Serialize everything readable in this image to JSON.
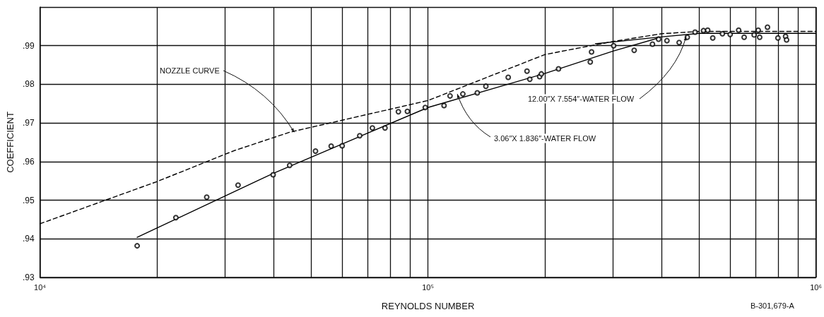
{
  "chart_data": {
    "type": "scatter",
    "xlabel": "REYNOLDS NUMBER",
    "ylabel": "COEFFICIENT",
    "log": "x",
    "grid": true,
    "xlim": [
      10000,
      1000000
    ],
    "xticks": [
      {
        "value": 10000,
        "label": "10⁴"
      },
      {
        "value": 20000,
        "label": null
      },
      {
        "value": 30000,
        "label": null
      },
      {
        "value": 40000,
        "label": null
      },
      {
        "value": 50000,
        "label": null
      },
      {
        "value": 60000,
        "label": null
      },
      {
        "value": 70000,
        "label": null
      },
      {
        "value": 80000,
        "label": null
      },
      {
        "value": 90000,
        "label": null
      },
      {
        "value": 100000,
        "label": "10⁵"
      },
      {
        "value": 200000,
        "label": null
      },
      {
        "value": 300000,
        "label": null
      },
      {
        "value": 400000,
        "label": null
      },
      {
        "value": 500000,
        "label": null
      },
      {
        "value": 600000,
        "label": null
      },
      {
        "value": 700000,
        "label": null
      },
      {
        "value": 800000,
        "label": null
      },
      {
        "value": 900000,
        "label": null
      },
      {
        "value": 1000000,
        "label": "10⁶"
      }
    ],
    "ylim": [
      0.93,
      1.0
    ],
    "yticks": [
      {
        "value": 0.93,
        "label": ".93"
      },
      {
        "value": 0.94,
        "label": ".94"
      },
      {
        "value": 0.95,
        "label": ".95"
      },
      {
        "value": 0.96,
        "label": ".96"
      },
      {
        "value": 0.97,
        "label": ".97"
      },
      {
        "value": 0.98,
        "label": ".98"
      },
      {
        "value": 0.99,
        "label": ".99"
      },
      {
        "value": 1.0,
        "label": null
      }
    ],
    "series": [
      {
        "color": "#000000",
        "marker": "circle",
        "x": [
          17800,
          22400,
          26900,
          32400,
          39900,
          44000,
          51300,
          56300,
          60100,
          66700,
          71900,
          77500,
          83900,
          88500,
          98400,
          110000,
          114000,
          123000,
          134000,
          141000,
          161000,
          180000,
          183000,
          194000,
          196000,
          217000,
          262000,
          264000,
          301000,
          340000,
          379000,
          393000,
          413000,
          444000,
          466000,
          488000,
          513000,
          526000,
          542000,
          574000,
          601000,
          632000,
          653000,
          693000,
          710000,
          716000,
          750000,
          798000,
          835000,
          840000
        ],
        "values": [
          0.9382,
          0.9455,
          0.9508,
          0.9539,
          0.9566,
          0.959,
          0.9627,
          0.964,
          0.9641,
          0.9667,
          0.9687,
          0.9687,
          0.9729,
          0.973,
          0.974,
          0.9745,
          0.977,
          0.9775,
          0.9778,
          0.9795,
          0.9818,
          0.9834,
          0.9813,
          0.982,
          0.9827,
          0.984,
          0.9858,
          0.9884,
          0.99,
          0.9888,
          0.9904,
          0.9917,
          0.9913,
          0.9908,
          0.9922,
          0.9935,
          0.9939,
          0.994,
          0.992,
          0.9931,
          0.9929,
          0.994,
          0.9922,
          0.9928,
          0.994,
          0.9922,
          0.9948,
          0.992,
          0.9924,
          0.9915
        ]
      },
      {
        "type": "line",
        "color": "#000000",
        "marker": "none",
        "line_style": "solid",
        "x": [
          17800,
          40000,
          100000,
          200000,
          300000,
          393000
        ],
        "values": [
          0.9404,
          0.957,
          0.974,
          0.9828,
          0.9886,
          0.992
        ]
      },
      {
        "type": "line",
        "color": "#000000",
        "marker": "none",
        "line_style": "solid",
        "x": [
          270000,
          393000,
          500000,
          1000000
        ],
        "values": [
          0.9905,
          0.9922,
          0.9932,
          0.9932
        ]
      },
      {
        "type": "line",
        "color": "#000000",
        "marker": "none",
        "line_style": "dashed",
        "x": [
          10000,
          20000,
          31600,
          44000,
          100000,
          200000,
          300000,
          400000,
          500000,
          1000000
        ],
        "values": [
          0.9439,
          0.9548,
          0.9628,
          0.9676,
          0.9758,
          0.9877,
          0.9911,
          0.9931,
          0.9937,
          0.9937
        ]
      }
    ],
    "annotations": [
      {
        "text": "NOZZLE CURVE",
        "x": 45200,
        "y": 0.9676
      },
      {
        "text": "12.00″X 7.554″-WATER FLOW",
        "x": 463000,
        "y": 0.9924
      },
      {
        "text": "3.06″X 1.836″-WATER FLOW",
        "x": 119000,
        "y": 0.9775
      },
      "B-301,679-A"
    ]
  }
}
